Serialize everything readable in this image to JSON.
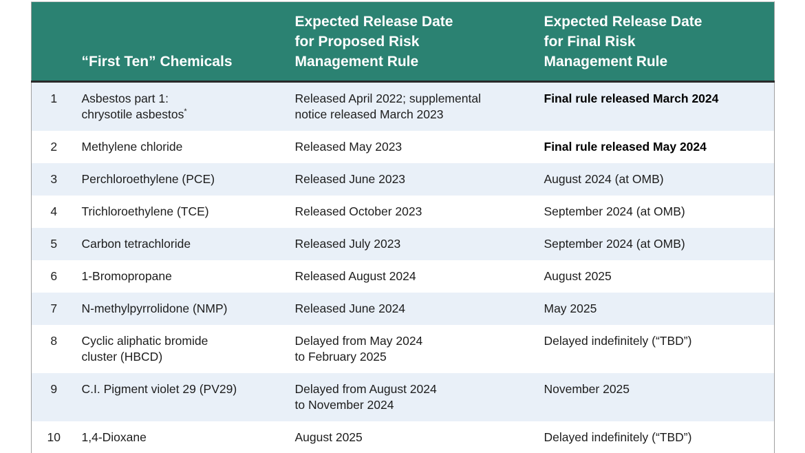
{
  "colors": {
    "header_bg": "#2B8272",
    "header_text": "#FFFFFF",
    "row_alt_bg": "#E9F0F8",
    "row_bg": "#FFFFFF",
    "body_text": "#1D1D1D",
    "rule_dark": "#2A2A2A"
  },
  "header": {
    "num": "",
    "chemicals": "“First Ten” Chemicals",
    "proposed": "Expected Release Date\nfor Proposed Risk\nManagement Rule",
    "final": "Expected Release Date\nfor Final Risk\nManagement Rule"
  },
  "rows": [
    {
      "num": "1",
      "chemical": "Asbestos part 1:\nchrysotile asbestos",
      "chemical_sup": "*",
      "proposed": "Released April 2022; supplemental\nnotice released March 2023",
      "final": "Final rule released March 2024"
    },
    {
      "num": "2",
      "chemical": "Methylene chloride",
      "proposed": "Released May 2023",
      "final": "Final rule released May 2024"
    },
    {
      "num": "3",
      "chemical": "Perchloroethylene (PCE)",
      "proposed": "Released June 2023",
      "final": "August 2024 (at OMB)"
    },
    {
      "num": "4",
      "chemical": "Trichloroethylene (TCE)",
      "proposed": "Released October 2023",
      "final": "September 2024 (at OMB)"
    },
    {
      "num": "5",
      "chemical": "Carbon tetrachloride",
      "proposed": "Released July 2023",
      "final": "September 2024 (at OMB)"
    },
    {
      "num": "6",
      "chemical": "1-Bromopropane",
      "proposed": "Released August 2024",
      "final": "August 2025"
    },
    {
      "num": "7",
      "chemical": "N-methylpyrrolidone (NMP)",
      "proposed": "Released June 2024",
      "final": "May 2025"
    },
    {
      "num": "8",
      "chemical": "Cyclic aliphatic bromide\ncluster (HBCD)",
      "proposed": "Delayed from May 2024\nto February 2025",
      "final": "Delayed indefinitely (“TBD”)"
    },
    {
      "num": "9",
      "chemical": "C.I. Pigment violet 29 (PV29)",
      "proposed": "Delayed from August 2024\nto November 2024",
      "final": "November 2025"
    },
    {
      "num": "10",
      "chemical": "1,4-Dioxane",
      "proposed": "August 2025",
      "final": "Delayed indefinitely (“TBD”)"
    }
  ]
}
